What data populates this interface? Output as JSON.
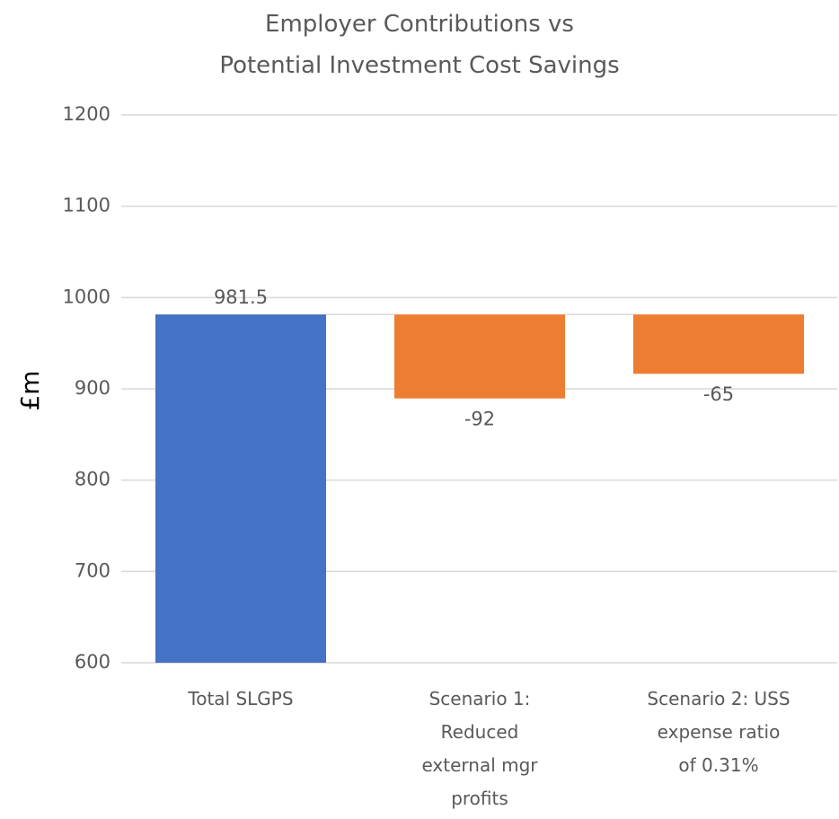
{
  "chart_data": {
    "type": "waterfall",
    "title": [
      "Employer Contributions vs",
      "Potential Investment Cost Savings"
    ],
    "y_label": "£m",
    "categories": [
      "Total SLGPS",
      "Scenario 1: Reduced external mgr profits",
      "Scenario 2: USS expense ratio of 0.31%"
    ],
    "values": [
      981.5,
      -92,
      -65
    ],
    "colors": [
      "#4472c4",
      "#ed7d31",
      "#ed7d31"
    ],
    "ylim": [
      600,
      1200
    ],
    "yticks": [
      600,
      700,
      800,
      900,
      1000,
      1100,
      1200
    ],
    "grid": true
  }
}
